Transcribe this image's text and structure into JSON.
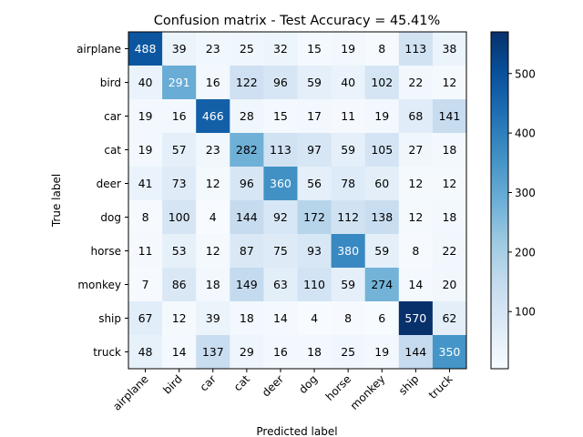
{
  "chart_data": {
    "type": "heatmap",
    "title": "Confusion matrix - Test Accuracy = 45.41%",
    "xlabel": "Predicted label",
    "ylabel": "True label",
    "x_categories": [
      "airplane",
      "bird",
      "car",
      "cat",
      "deer",
      "dog",
      "horse",
      "monkey",
      "ship",
      "truck"
    ],
    "y_categories": [
      "airplane",
      "bird",
      "car",
      "cat",
      "deer",
      "dog",
      "horse",
      "monkey",
      "ship",
      "truck"
    ],
    "values": [
      [
        488,
        39,
        23,
        25,
        32,
        15,
        19,
        8,
        113,
        38
      ],
      [
        40,
        291,
        16,
        122,
        96,
        59,
        40,
        102,
        22,
        12
      ],
      [
        19,
        16,
        466,
        28,
        15,
        17,
        11,
        19,
        68,
        141
      ],
      [
        19,
        57,
        23,
        282,
        113,
        97,
        59,
        105,
        27,
        18
      ],
      [
        41,
        73,
        12,
        96,
        360,
        56,
        78,
        60,
        12,
        12
      ],
      [
        8,
        100,
        4,
        144,
        92,
        172,
        112,
        138,
        12,
        18
      ],
      [
        11,
        53,
        12,
        87,
        75,
        93,
        380,
        59,
        8,
        22
      ],
      [
        7,
        86,
        18,
        149,
        63,
        110,
        59,
        274,
        14,
        20
      ],
      [
        67,
        12,
        39,
        18,
        14,
        4,
        8,
        6,
        570,
        62
      ],
      [
        48,
        14,
        137,
        29,
        16,
        18,
        25,
        19,
        144,
        350
      ]
    ],
    "colormap": "Blues",
    "color_range": [
      4,
      570
    ],
    "colorbar_ticks": [
      100,
      200,
      300,
      400,
      500
    ],
    "annotation_threshold": 287,
    "x_tick_rotation_deg": 45,
    "grid": false
  }
}
